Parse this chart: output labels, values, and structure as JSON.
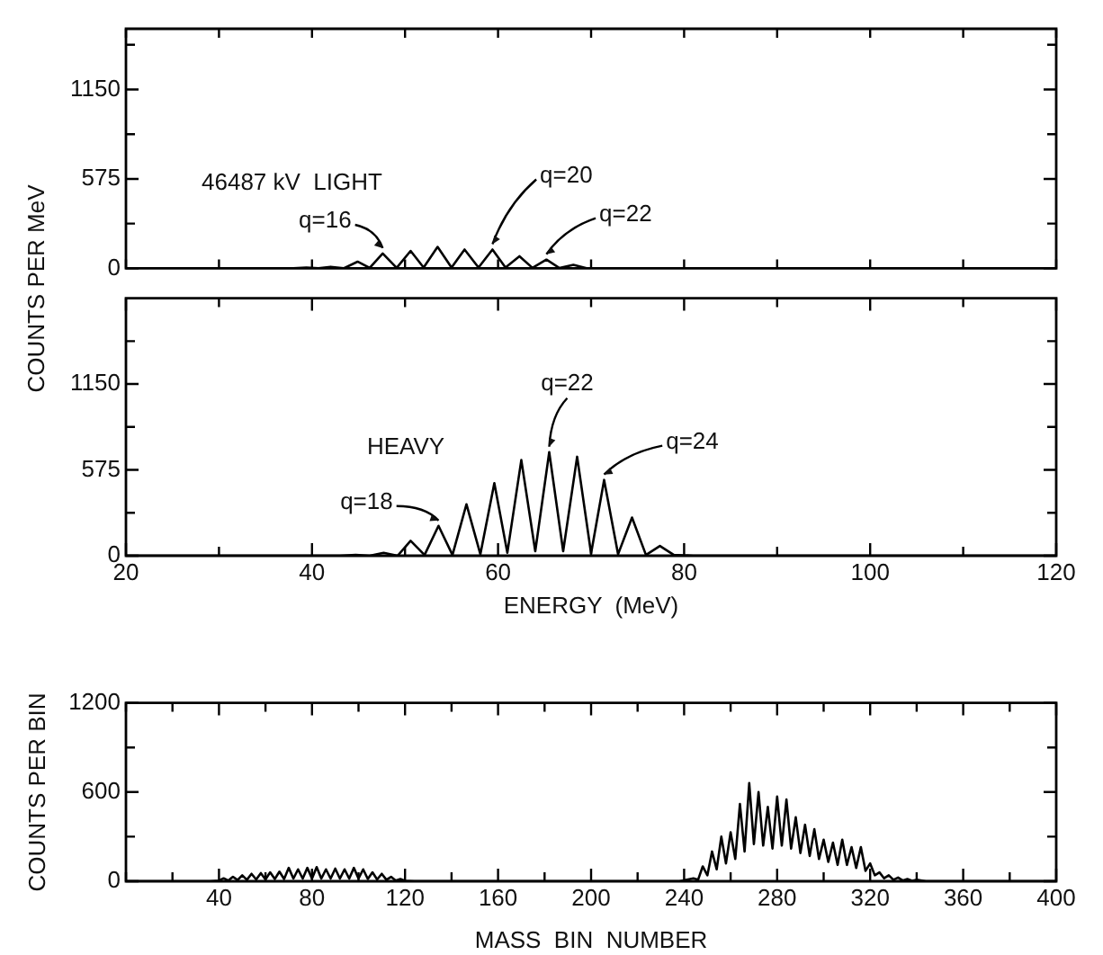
{
  "chart_data": [
    {
      "type": "line",
      "ylabel": "COUNTS PER MeV",
      "color": "#000000",
      "marker": "none",
      "legend": false,
      "grid": false,
      "tick_labels": "y",
      "xlim": [
        20,
        120
      ],
      "ylim": [
        0,
        1540
      ],
      "xticks": [
        {
          "value": 20,
          "label": null
        },
        {
          "value": 30,
          "label": null
        },
        {
          "value": 40,
          "label": null
        },
        {
          "value": 50,
          "label": null
        },
        {
          "value": 60,
          "label": null
        },
        {
          "value": 70,
          "label": null
        },
        {
          "value": 80,
          "label": null
        },
        {
          "value": 90,
          "label": null
        },
        {
          "value": 100,
          "label": null
        },
        {
          "value": 110,
          "label": null
        },
        {
          "value": 120,
          "label": null
        }
      ],
      "yticks": [
        0,
        {
          "value": 287.5,
          "label": null
        },
        575,
        {
          "value": 862.5,
          "label": null
        },
        1150,
        {
          "value": 1437.5,
          "label": null
        }
      ],
      "x": [
        20,
        38,
        39.4,
        40.7,
        42,
        43.4,
        44.9,
        46.2,
        47.6,
        49.1,
        50.6,
        52,
        53.5,
        55,
        56.4,
        57.9,
        59.4,
        60.8,
        62.3,
        63.7,
        65.2,
        66.6,
        68.1,
        69.6,
        72,
        120
      ],
      "values": [
        0,
        0,
        5,
        0,
        10,
        0,
        43,
        3,
        95,
        3,
        112,
        5,
        138,
        5,
        121,
        5,
        121,
        5,
        78,
        3,
        56,
        2,
        22,
        0,
        0,
        0
      ],
      "annotations": [
        "46487 kV  LIGHT",
        {
          "text": "q=16",
          "x": 47.6,
          "y": 95
        },
        {
          "text": "q=20",
          "x": 59.4,
          "y": 121
        },
        {
          "text": "q=22",
          "x": 65.2,
          "y": 56
        }
      ]
    },
    {
      "type": "line",
      "xlabel": "ENERGY  (MeV)",
      "color": "#000000",
      "marker": "none",
      "legend": false,
      "grid": false,
      "xlim": [
        20,
        120
      ],
      "ylim": [
        0,
        1725
      ],
      "xticks": [
        20,
        {
          "value": 30,
          "label": null
        },
        40,
        {
          "value": 50,
          "label": null
        },
        60,
        {
          "value": 70,
          "label": null
        },
        80,
        {
          "value": 90,
          "label": null
        },
        100,
        {
          "value": 110,
          "label": null
        },
        120
      ],
      "yticks": [
        0,
        {
          "value": 287.5,
          "label": null
        },
        575,
        {
          "value": 862.5,
          "label": null
        },
        1150,
        {
          "value": 1437.5,
          "label": null
        }
      ],
      "x": [
        20,
        43,
        44.7,
        46.2,
        47.7,
        49.2,
        50.6,
        52.1,
        53.6,
        55.1,
        56.6,
        58.1,
        59.6,
        61,
        62.5,
        64,
        65.5,
        67,
        68.5,
        70,
        71.4,
        72.9,
        74.4,
        75.9,
        77.4,
        78.9,
        81,
        120
      ],
      "values": [
        0,
        0,
        5,
        0,
        20,
        0,
        100,
        5,
        200,
        5,
        345,
        10,
        486,
        20,
        641,
        30,
        694,
        30,
        663,
        15,
        508,
        10,
        256,
        5,
        66,
        5,
        0,
        0
      ],
      "annotations": [
        "HEAVY",
        {
          "text": "q=18",
          "x": 53.6,
          "y": 200
        },
        {
          "text": "q=22",
          "x": 65.5,
          "y": 694
        },
        {
          "text": "q=24",
          "x": 71.4,
          "y": 508
        }
      ]
    },
    {
      "type": "line",
      "xlabel": "MASS  BIN  NUMBER",
      "ylabel": "COUNTS  PER  BIN",
      "color": "#000000",
      "marker": "none",
      "legend": false,
      "grid": false,
      "xlim": [
        0,
        400
      ],
      "ylim": [
        0,
        1200
      ],
      "xticks": [
        {
          "value": 0,
          "label": null
        },
        {
          "value": 20,
          "label": null
        },
        40,
        {
          "value": 60,
          "label": null
        },
        80,
        {
          "value": 100,
          "label": null
        },
        120,
        {
          "value": 140,
          "label": null
        },
        160,
        {
          "value": 180,
          "label": null
        },
        200,
        {
          "value": 220,
          "label": null
        },
        240,
        {
          "value": 260,
          "label": null
        },
        280,
        {
          "value": 300,
          "label": null
        },
        320,
        {
          "value": 340,
          "label": null
        },
        360,
        {
          "value": 380,
          "label": null
        },
        400
      ],
      "yticks": [
        0,
        {
          "value": 300,
          "label": null
        },
        600,
        {
          "value": 900,
          "label": null
        },
        1200
      ],
      "x": [
        0,
        36,
        40,
        42,
        44,
        46,
        48,
        50,
        52,
        54,
        56,
        58,
        60,
        62,
        64,
        66,
        68,
        70,
        72,
        74,
        76,
        78,
        80,
        82,
        84,
        86,
        88,
        90,
        92,
        94,
        96,
        98,
        100,
        102,
        104,
        106,
        108,
        110,
        112,
        114,
        116,
        118,
        120,
        124,
        238,
        244,
        246,
        248,
        250,
        252,
        254,
        256,
        258,
        260,
        262,
        264,
        266,
        268,
        270,
        272,
        274,
        276,
        278,
        280,
        282,
        284,
        286,
        288,
        290,
        292,
        294,
        296,
        298,
        300,
        302,
        304,
        306,
        308,
        310,
        312,
        314,
        316,
        318,
        320,
        322,
        324,
        326,
        328,
        330,
        332,
        334,
        336,
        338,
        340,
        344,
        400
      ],
      "values": [
        0,
        0,
        5,
        20,
        5,
        30,
        8,
        40,
        10,
        50,
        12,
        55,
        12,
        60,
        15,
        65,
        15,
        90,
        18,
        80,
        18,
        90,
        18,
        95,
        18,
        80,
        18,
        85,
        18,
        80,
        18,
        90,
        18,
        80,
        15,
        60,
        12,
        50,
        10,
        30,
        5,
        15,
        3,
        0,
        0,
        20,
        10,
        100,
        40,
        200,
        80,
        300,
        120,
        330,
        150,
        520,
        200,
        660,
        250,
        600,
        240,
        500,
        220,
        570,
        240,
        550,
        220,
        430,
        190,
        380,
        170,
        350,
        150,
        280,
        130,
        260,
        110,
        280,
        110,
        230,
        90,
        230,
        70,
        120,
        40,
        60,
        20,
        40,
        10,
        25,
        5,
        15,
        3,
        10,
        0,
        0
      ]
    }
  ]
}
